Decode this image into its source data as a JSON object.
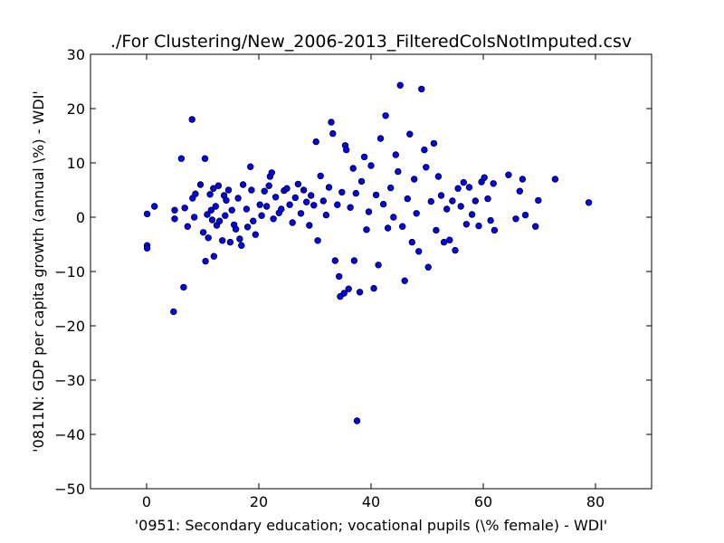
{
  "chart_data": {
    "type": "scatter",
    "title": "./For Clustering/New_2006-2013_FilteredColsNotImputed.csv",
    "xlabel": "'0951: Secondary education; vocational pupils  (\\% female) - WDI'",
    "ylabel": "'0811N: GDP per capita growth  (annual \\%) - WDI'",
    "xlim": [
      -10,
      90
    ],
    "ylim": [
      -50,
      30
    ],
    "xticks": [
      0,
      20,
      40,
      60,
      80
    ],
    "yticks": [
      -50,
      -40,
      -30,
      -20,
      -10,
      0,
      10,
      20,
      30
    ],
    "grid": false,
    "marker_color": "#0000ff",
    "marker_edge": "#000000",
    "series": [
      {
        "points": [
          [
            0.1,
            0.6
          ],
          [
            0.1,
            -5.2
          ],
          [
            0.1,
            -5.7
          ],
          [
            1.4,
            2.0
          ],
          [
            4.8,
            -17.4
          ],
          [
            5.0,
            1.3
          ],
          [
            5.0,
            -0.3
          ],
          [
            6.2,
            10.8
          ],
          [
            6.6,
            -12.9
          ],
          [
            6.8,
            1.7
          ],
          [
            7.3,
            -1.7
          ],
          [
            8.1,
            18.0
          ],
          [
            8.2,
            3.5
          ],
          [
            8.5,
            0.0
          ],
          [
            8.7,
            4.3
          ],
          [
            9.6,
            6.0
          ],
          [
            10.1,
            -2.8
          ],
          [
            10.4,
            10.8
          ],
          [
            10.5,
            -8.1
          ],
          [
            10.8,
            0.5
          ],
          [
            11.0,
            -3.8
          ],
          [
            11.3,
            4.2
          ],
          [
            11.5,
            1.3
          ],
          [
            11.7,
            -0.5
          ],
          [
            11.9,
            5.3
          ],
          [
            12.0,
            -7.2
          ],
          [
            12.3,
            2.0
          ],
          [
            12.5,
            -1.5
          ],
          [
            12.8,
            5.8
          ],
          [
            13.0,
            -0.7
          ],
          [
            13.5,
            -4.3
          ],
          [
            13.8,
            4.0
          ],
          [
            14.0,
            0.3
          ],
          [
            14.2,
            3.1
          ],
          [
            14.6,
            5.0
          ],
          [
            14.9,
            -4.6
          ],
          [
            15.2,
            1.3
          ],
          [
            15.6,
            -1.4
          ],
          [
            15.9,
            -2.2
          ],
          [
            16.3,
            3.5
          ],
          [
            16.6,
            -4.0
          ],
          [
            16.9,
            -5.2
          ],
          [
            17.2,
            6.0
          ],
          [
            17.8,
            1.5
          ],
          [
            18.0,
            -1.8
          ],
          [
            18.5,
            9.3
          ],
          [
            18.7,
            5.0
          ],
          [
            19.0,
            -0.7
          ],
          [
            19.4,
            -3.2
          ],
          [
            20.2,
            2.3
          ],
          [
            20.5,
            0.3
          ],
          [
            21.0,
            4.8
          ],
          [
            21.4,
            2.0
          ],
          [
            21.8,
            5.8
          ],
          [
            22.0,
            7.5
          ],
          [
            22.3,
            8.2
          ],
          [
            22.6,
            -0.3
          ],
          [
            23.0,
            3.7
          ],
          [
            23.6,
            0.8
          ],
          [
            24.0,
            1.5
          ],
          [
            24.5,
            4.9
          ],
          [
            25.0,
            5.3
          ],
          [
            25.5,
            2.3
          ],
          [
            26.0,
            -1.0
          ],
          [
            26.5,
            3.6
          ],
          [
            27.0,
            6.1
          ],
          [
            27.5,
            0.7
          ],
          [
            28.0,
            5.0
          ],
          [
            28.5,
            2.8
          ],
          [
            29.0,
            -1.5
          ],
          [
            29.3,
            4.0
          ],
          [
            29.8,
            2.2
          ],
          [
            30.2,
            13.9
          ],
          [
            30.5,
            -4.3
          ],
          [
            31.0,
            7.6
          ],
          [
            31.5,
            3.0
          ],
          [
            32.0,
            0.4
          ],
          [
            32.5,
            5.5
          ],
          [
            32.9,
            17.5
          ],
          [
            33.2,
            15.4
          ],
          [
            33.6,
            -8.0
          ],
          [
            34.0,
            2.3
          ],
          [
            34.3,
            -10.9
          ],
          [
            34.5,
            -14.6
          ],
          [
            34.8,
            4.6
          ],
          [
            35.2,
            -14.0
          ],
          [
            35.4,
            13.2
          ],
          [
            35.6,
            12.4
          ],
          [
            36.0,
            -13.2
          ],
          [
            36.3,
            1.8
          ],
          [
            36.8,
            9.0
          ],
          [
            37.0,
            -8.0
          ],
          [
            37.3,
            4.4
          ],
          [
            37.5,
            -37.5
          ],
          [
            38.0,
            -13.8
          ],
          [
            38.3,
            6.6
          ],
          [
            38.8,
            11.1
          ],
          [
            39.2,
            -2.3
          ],
          [
            39.6,
            1.0
          ],
          [
            40.0,
            9.5
          ],
          [
            40.5,
            -13.1
          ],
          [
            40.9,
            4.1
          ],
          [
            41.3,
            -8.8
          ],
          [
            41.7,
            14.5
          ],
          [
            42.2,
            2.4
          ],
          [
            42.6,
            18.7
          ],
          [
            43.0,
            -2.0
          ],
          [
            43.5,
            5.4
          ],
          [
            44.0,
            0.0
          ],
          [
            44.4,
            11.5
          ],
          [
            44.8,
            8.4
          ],
          [
            45.2,
            24.3
          ],
          [
            45.6,
            -1.7
          ],
          [
            46.0,
            -11.7
          ],
          [
            46.5,
            3.4
          ],
          [
            46.9,
            15.3
          ],
          [
            47.3,
            -4.6
          ],
          [
            47.7,
            7.0
          ],
          [
            48.1,
            0.7
          ],
          [
            48.5,
            -6.3
          ],
          [
            49.0,
            23.6
          ],
          [
            49.5,
            12.4
          ],
          [
            49.8,
            9.2
          ],
          [
            50.2,
            -9.2
          ],
          [
            50.7,
            2.9
          ],
          [
            51.2,
            13.6
          ],
          [
            51.6,
            -2.4
          ],
          [
            52.0,
            7.5
          ],
          [
            52.5,
            4.0
          ],
          [
            53.0,
            -4.6
          ],
          [
            53.5,
            1.5
          ],
          [
            54.0,
            -4.2
          ],
          [
            54.5,
            3.0
          ],
          [
            55.0,
            -6.1
          ],
          [
            55.5,
            5.3
          ],
          [
            56.0,
            2.0
          ],
          [
            56.5,
            6.4
          ],
          [
            57.0,
            -1.3
          ],
          [
            57.5,
            5.5
          ],
          [
            58.0,
            0.5
          ],
          [
            58.6,
            3.0
          ],
          [
            59.2,
            -1.6
          ],
          [
            59.7,
            6.5
          ],
          [
            60.2,
            7.3
          ],
          [
            60.8,
            3.4
          ],
          [
            61.3,
            -0.6
          ],
          [
            61.8,
            6.2
          ],
          [
            62.0,
            -2.4
          ],
          [
            64.5,
            7.8
          ],
          [
            65.8,
            -0.3
          ],
          [
            66.5,
            4.8
          ],
          [
            67.0,
            7.0
          ],
          [
            67.5,
            0.4
          ],
          [
            69.3,
            -1.7
          ],
          [
            69.8,
            3.1
          ],
          [
            72.8,
            7.0
          ],
          [
            78.8,
            2.7
          ]
        ]
      }
    ]
  }
}
